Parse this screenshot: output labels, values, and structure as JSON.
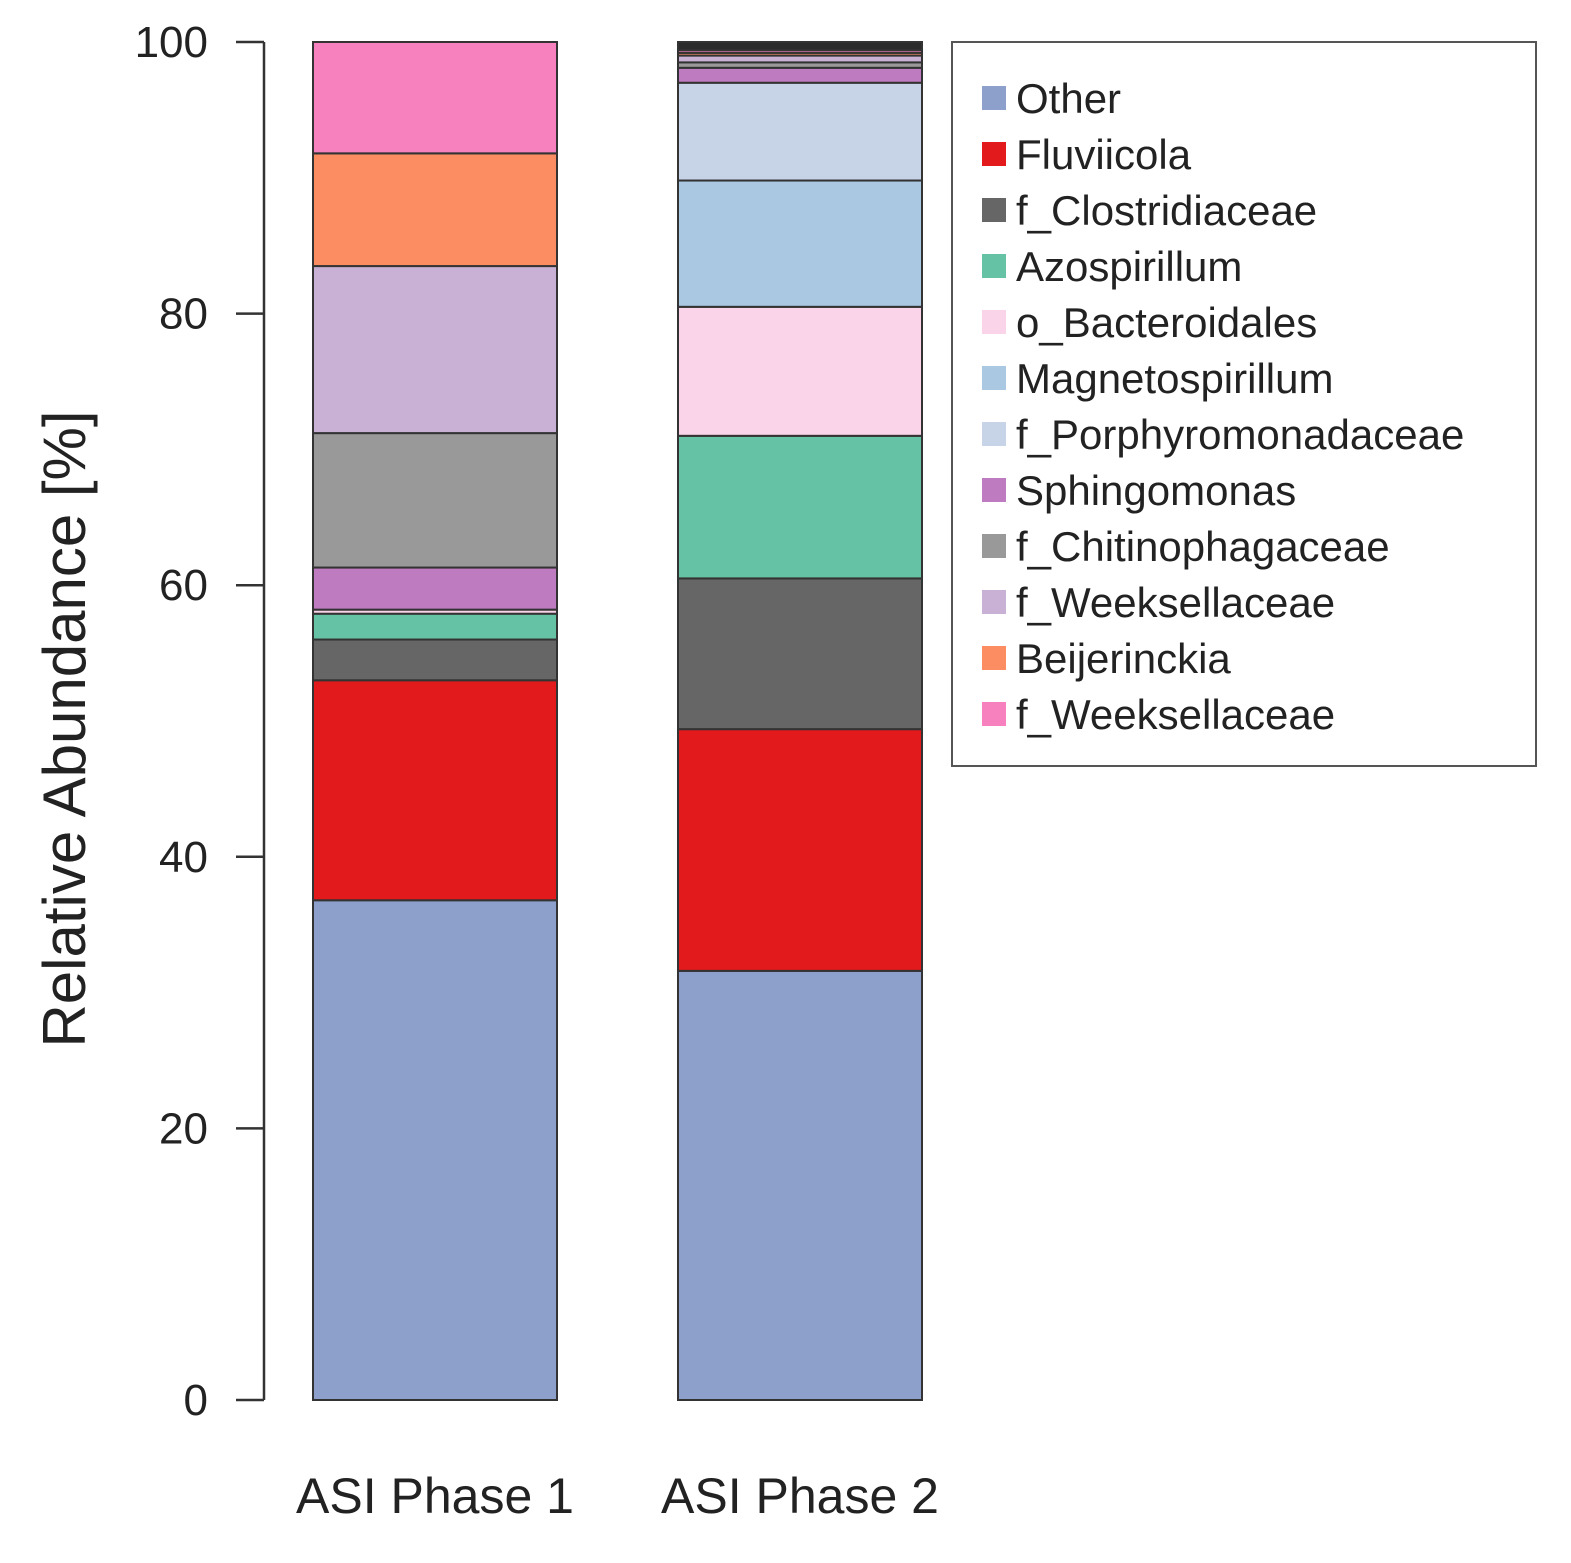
{
  "chart_data": {
    "type": "bar",
    "stacked": true,
    "ylabel": "Relative Abundance  [%]",
    "xlabel": "",
    "title": "",
    "ylim": [
      0,
      100
    ],
    "yticks": [
      0,
      20,
      40,
      60,
      80,
      100
    ],
    "ytick_labels": [
      "0",
      "20",
      "40",
      "60",
      "80",
      "100"
    ],
    "categories": [
      "ASI Phase 1",
      "ASI Phase 2"
    ],
    "legend_position": "top-right",
    "series": [
      {
        "name": "Other",
        "color": "#8da0cb",
        "values": [
          36.8,
          31.6
        ]
      },
      {
        "name": "Fluviicola",
        "color": "#e31a1c",
        "values": [
          16.2,
          17.8
        ]
      },
      {
        "name": "f_Clostridiaceae",
        "color": "#666666",
        "values": [
          3.0,
          11.1
        ]
      },
      {
        "name": "Azospirillum",
        "color": "#66c2a5",
        "values": [
          1.9,
          10.5
        ]
      },
      {
        "name": "o_Bacteroidales",
        "color": "#fad4e9",
        "values": [
          0.3,
          9.5
        ]
      },
      {
        "name": "Magnetospirillum",
        "color": "#abc8e2",
        "values": [
          0.0,
          9.3
        ]
      },
      {
        "name": "f_Porphyromonadaceae",
        "color": "#c7d3e6",
        "values": [
          0.0,
          7.2
        ]
      },
      {
        "name": "Sphingomonas",
        "color": "#be7bc0",
        "values": [
          3.1,
          1.1
        ]
      },
      {
        "name": "f_Chitinophagaceae",
        "color": "#999999",
        "values": [
          9.9,
          0.4
        ]
      },
      {
        "name": "f_Weeksellaceae",
        "color": "#c9b1d6",
        "values": [
          12.3,
          0.5
        ]
      },
      {
        "name": "Beijerinckia",
        "color": "#fc8d62",
        "values": [
          8.3,
          0.2
        ]
      },
      {
        "name": "f_Weeksellaceae",
        "color": "#f781bf",
        "values": [
          8.2,
          0.2
        ]
      },
      {
        "name": "",
        "color": "#2b2b2b",
        "values": [
          0.0,
          0.6
        ]
      }
    ]
  }
}
